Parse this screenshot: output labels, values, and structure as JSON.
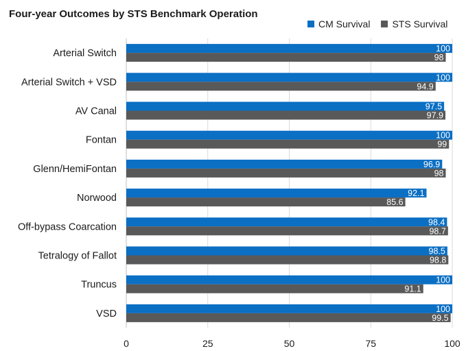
{
  "chart_data": {
    "type": "bar",
    "orientation": "horizontal",
    "title": "Four-year Outcomes by STS Benchmark Operation",
    "xlabel": "",
    "ylabel": "",
    "xlim": [
      0,
      100
    ],
    "xticks": [
      0,
      25,
      50,
      75,
      100
    ],
    "grid": true,
    "legend_position": "top-right",
    "categories": [
      "Arterial Switch",
      "Arterial Switch + VSD",
      "AV Canal",
      "Fontan",
      "Glenn/HemiFontan",
      "Norwood",
      "Off-bypass Coarcation",
      "Tetralogy of Fallot",
      "Truncus",
      "VSD"
    ],
    "series": [
      {
        "name": "CM Survival",
        "color": "#0b6fc4",
        "values": [
          100,
          100,
          97.5,
          100,
          96.9,
          92.1,
          98.4,
          98.5,
          100,
          100
        ]
      },
      {
        "name": "STS Survival",
        "color": "#595959",
        "values": [
          98,
          94.9,
          97.9,
          99,
          98,
          85.6,
          98.7,
          98.8,
          91.1,
          99.5
        ]
      }
    ]
  }
}
